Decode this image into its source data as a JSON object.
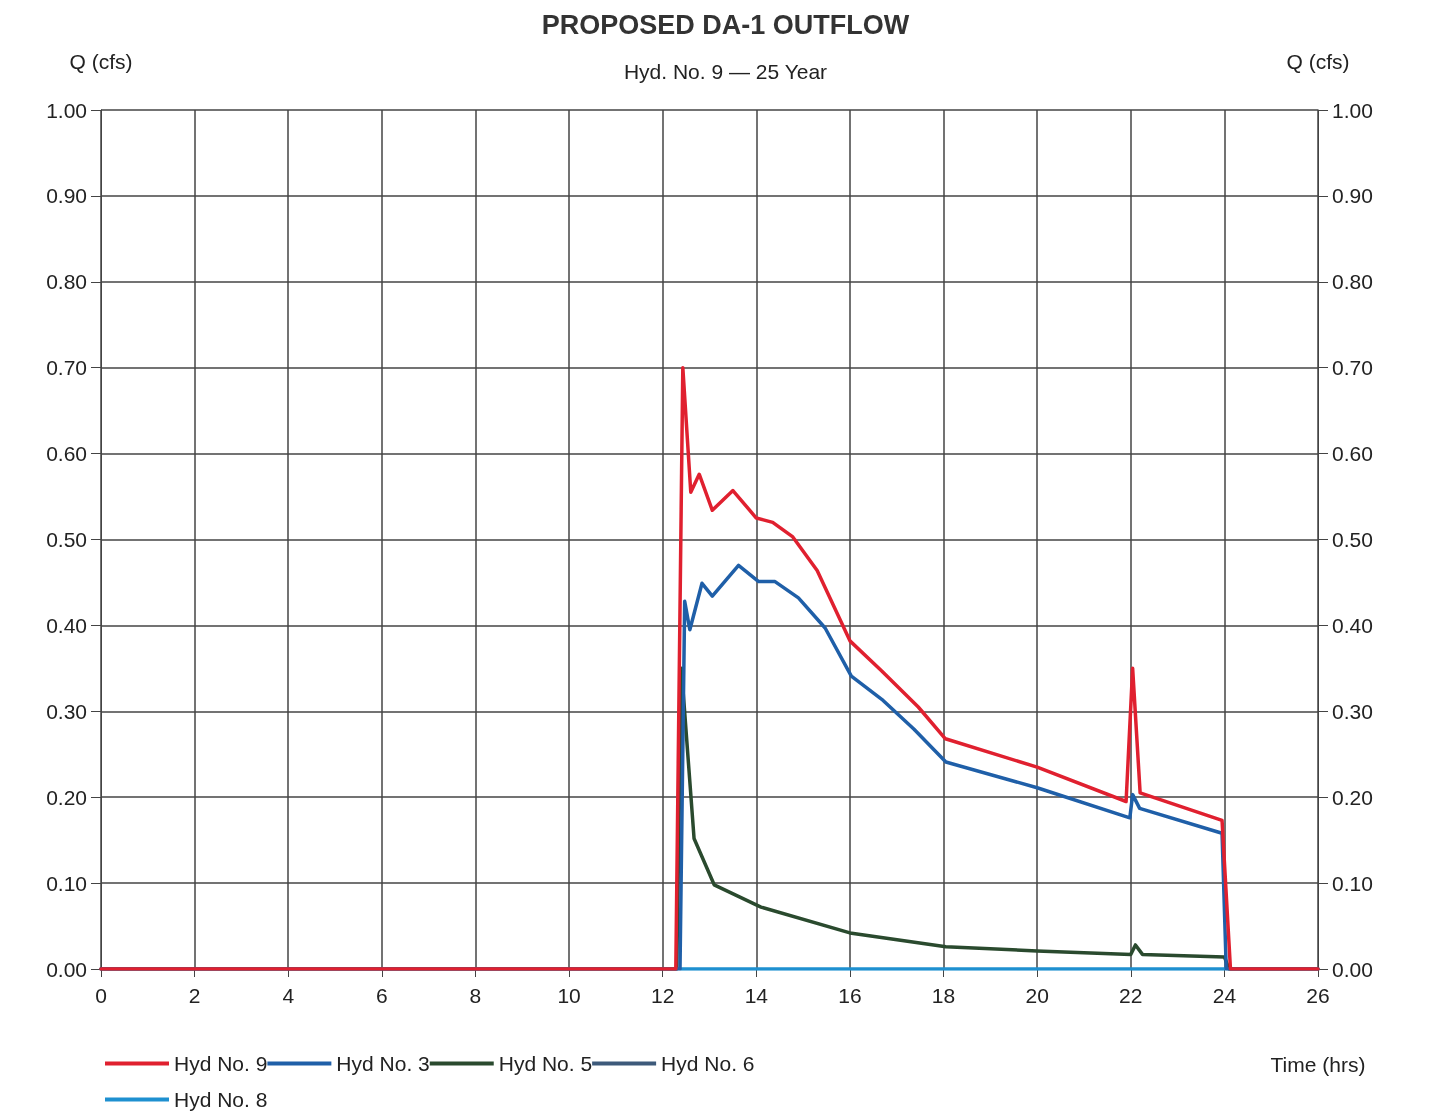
{
  "chart_data": {
    "type": "line",
    "title": "PROPOSED DA-1 OUTFLOW",
    "subtitle": "Hyd. No. 9 — 25 Year",
    "xlabel": "Time (hrs)",
    "ylabel": "Q (cfs)",
    "y2label": "Q (cfs)",
    "xlim": [
      0,
      26
    ],
    "xticks": [
      0,
      2,
      4,
      6,
      8,
      10,
      12,
      14,
      16,
      18,
      20,
      22,
      24,
      26
    ],
    "ylim": [
      0,
      1
    ],
    "yticks": [
      {
        "value": 0,
        "label": "0.00"
      },
      {
        "value": 0.1,
        "label": "0.10"
      },
      {
        "value": 0.2,
        "label": "0.20"
      },
      {
        "value": 0.3,
        "label": "0.30"
      },
      {
        "value": 0.4,
        "label": "0.40"
      },
      {
        "value": 0.5,
        "label": "0.50"
      },
      {
        "value": 0.6,
        "label": "0.60"
      },
      {
        "value": 0.7,
        "label": "0.70"
      },
      {
        "value": 0.8,
        "label": "0.80"
      },
      {
        "value": 0.9,
        "label": "0.90"
      },
      {
        "value": 1,
        "label": "1.00"
      }
    ],
    "y2lim": [
      0,
      1
    ],
    "y2ticks": [
      {
        "value": 0,
        "label": "0.00"
      },
      {
        "value": 0.1,
        "label": "0.10"
      },
      {
        "value": 0.2,
        "label": "0.20"
      },
      {
        "value": 0.3,
        "label": "0.30"
      },
      {
        "value": 0.4,
        "label": "0.40"
      },
      {
        "value": 0.5,
        "label": "0.50"
      },
      {
        "value": 0.6,
        "label": "0.60"
      },
      {
        "value": 0.7,
        "label": "0.70"
      },
      {
        "value": 0.8,
        "label": "0.80"
      },
      {
        "value": 0.9,
        "label": "0.90"
      },
      {
        "value": 1,
        "label": "1.00"
      }
    ],
    "grid": true,
    "legend": "bottom",
    "marker": "none",
    "line_style": "solid",
    "series": [
      {
        "name": "Hyd No. 8",
        "color": "#1e90d0",
        "x": [
          12.4,
          24
        ],
        "values": [
          0,
          0
        ]
      },
      {
        "name": "Hyd No. 6",
        "color": "#3d5a7a",
        "values": [
          null
        ]
      },
      {
        "name": "Hyd No. 5",
        "color": "#2a4a2e",
        "x": [
          0,
          12.3,
          12.4,
          12.67,
          13.1,
          14.1,
          16,
          18.05,
          20,
          22,
          22.1,
          22.25,
          24,
          24.1,
          26
        ],
        "values": [
          0,
          0,
          0.35,
          0.152,
          0.098,
          0.072,
          0.042,
          0.026,
          0.021,
          0.017,
          0.028,
          0.017,
          0.014,
          0,
          0
        ]
      },
      {
        "name": "Hyd No. 3",
        "color": "#1f5fa8",
        "x": [
          0,
          12.37,
          12.47,
          12.58,
          12.84,
          13.06,
          13.62,
          14.05,
          14.4,
          14.9,
          15.47,
          16.03,
          16.68,
          17.37,
          18.05,
          20,
          21.98,
          22.04,
          22.19,
          23.95,
          24.04,
          26
        ],
        "values": [
          0,
          0,
          0.428,
          0.395,
          0.449,
          0.434,
          0.47,
          0.451,
          0.451,
          0.432,
          0.397,
          0.341,
          0.314,
          0.279,
          0.241,
          0.211,
          0.176,
          0.203,
          0.187,
          0.158,
          0,
          0
        ]
      },
      {
        "name": "Hyd No. 9",
        "color": "#e0202f",
        "x": [
          0,
          12.28,
          12.43,
          12.6,
          12.78,
          13.06,
          13.5,
          14,
          14.35,
          14.78,
          15.3,
          16,
          16.68,
          17.46,
          18.04,
          20,
          21.9,
          22.04,
          22.2,
          23.95,
          24.13,
          26
        ],
        "values": [
          0,
          0,
          0.7,
          0.555,
          0.576,
          0.534,
          0.557,
          0.525,
          0.52,
          0.503,
          0.464,
          0.382,
          0.347,
          0.305,
          0.268,
          0.235,
          0.195,
          0.35,
          0.205,
          0.173,
          0,
          0
        ]
      }
    ]
  }
}
